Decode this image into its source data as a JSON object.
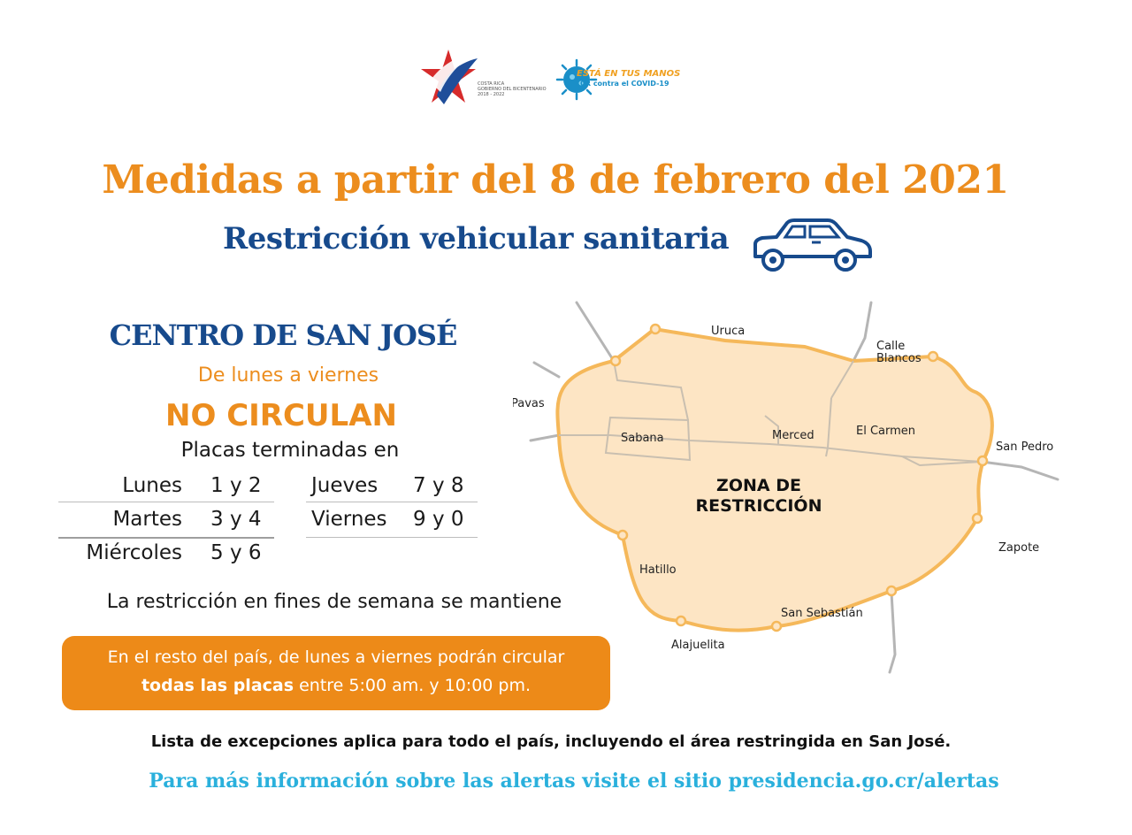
{
  "logos": {
    "government": {
      "line1": "COSTA RICA",
      "line2": "GOBIERNO DEL BICENTENARIO",
      "line3": "2018 - 2022"
    },
    "campaign": {
      "line1": "ESTÁ EN TUS MANOS",
      "line2": "CR contra el COVID-19"
    }
  },
  "header": {
    "title": "Medidas a partir del 8 de febrero del 2021",
    "subtitle": "Restricción vehicular sanitaria",
    "icon": "car-icon"
  },
  "restriction": {
    "area": "CENTRO DE SAN JOSÉ",
    "days": "De lunes a viernes",
    "status": "NO CIRCULAN",
    "plates_intro": "Placas terminadas en",
    "schedule": [
      {
        "day": "Lunes",
        "plates": "1 y 2"
      },
      {
        "day": "Martes",
        "plates": "3 y 4"
      },
      {
        "day": "Miércoles",
        "plates": "5 y 6"
      },
      {
        "day": "Jueves",
        "plates": "7 y 8"
      },
      {
        "day": "Viernes",
        "plates": "9 y 0"
      }
    ],
    "weekend": "La restricción en fines de semana se mantiene"
  },
  "rest_of_country": {
    "line1": "En el resto del país, de lunes a viernes podrán circular",
    "line2_bold": "todas las placas",
    "line2_rest": " entre 5:00 am. y 10:00 pm."
  },
  "map": {
    "zone_line1": "ZONA DE",
    "zone_line2": "RESTRICCIÓN",
    "places": {
      "uruca": "Uruca",
      "calle_blancos_1": "Calle",
      "calle_blancos_2": "Blancos",
      "pavas": "Pavas",
      "sabana": "Sabana",
      "merced": "Merced",
      "el_carmen": "El Carmen",
      "san_pedro": "San Pedro",
      "zapote": "Zapote",
      "hatillo": "Hatillo",
      "san_sebastian": "San Sebastián",
      "alajuelita": "Alajuelita"
    },
    "colors": {
      "zone_fill": "#fde5c4",
      "zone_border": "#f5b85a",
      "roads": "#b5b5b5"
    }
  },
  "footer": {
    "exceptions": "Lista de excepciones aplica para todo el país, incluyendo el área restringida en San José.",
    "info": "Para más información sobre las alertas visite el sitio presidencia.go.cr/alertas"
  },
  "colors": {
    "orange": "#ec8d1e",
    "navy": "#174a8c",
    "cyan": "#2ab0dc"
  }
}
